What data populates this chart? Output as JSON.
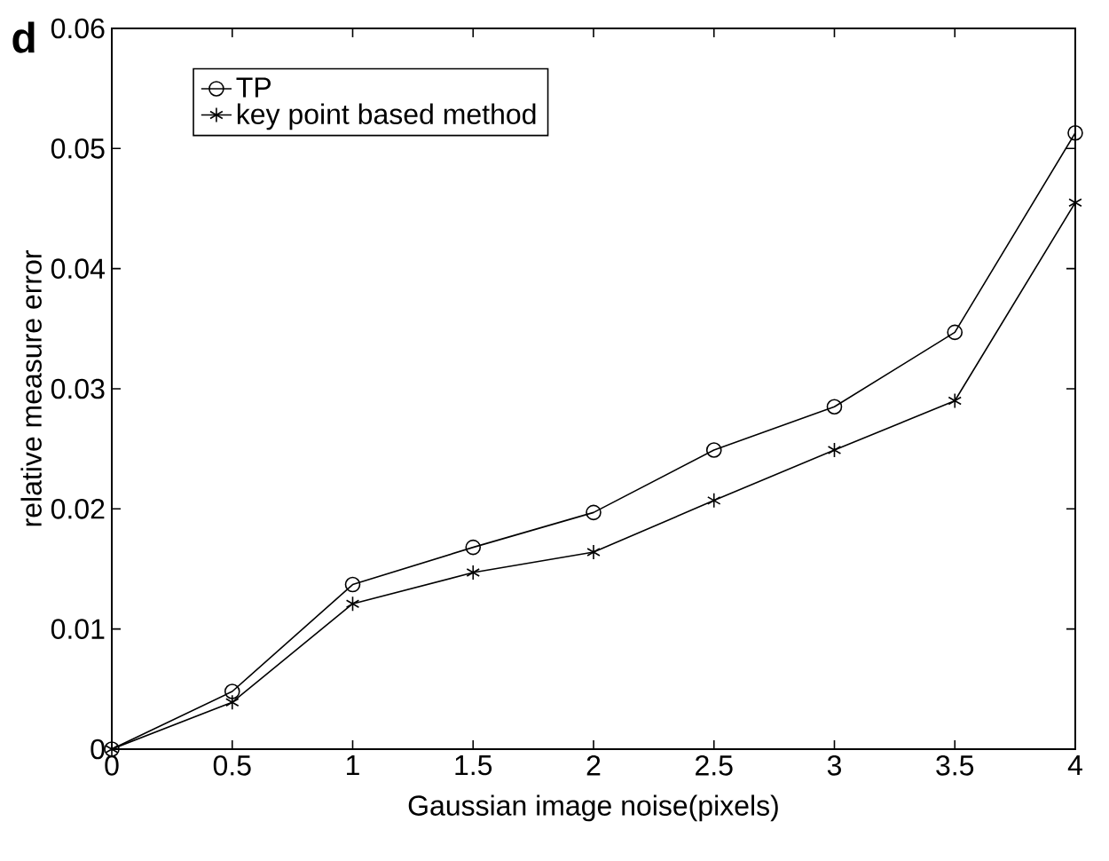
{
  "chart_data": {
    "type": "line",
    "xlabel": "Gaussian image noise(pixels)",
    "ylabel": "relative measure error",
    "annotations": [
      "d"
    ],
    "x": [
      0,
      0.5,
      1,
      1.5,
      2,
      2.5,
      3,
      3.5,
      4
    ],
    "series": [
      {
        "name": "TP",
        "color": "#000000",
        "marker": "circle",
        "values": [
          0,
          0.0048,
          0.0137,
          0.0168,
          0.0197,
          0.0249,
          0.0285,
          0.0347,
          0.0513
        ]
      },
      {
        "name": "key point based method",
        "color": "#000000",
        "marker": "cross",
        "values": [
          0,
          0.0039,
          0.0121,
          0.0147,
          0.0164,
          0.0207,
          0.0249,
          0.029,
          0.0455
        ]
      }
    ],
    "xlim": [
      0,
      4
    ],
    "ylim": [
      0,
      0.06
    ],
    "xticks": [
      0,
      0.5,
      1,
      1.5,
      2,
      2.5,
      3,
      3.5,
      4
    ],
    "yticks": [
      0,
      0.01,
      0.02,
      0.03,
      0.04,
      0.05,
      0.06
    ],
    "legend": "top left",
    "line_style": "solid",
    "grid": false
  }
}
